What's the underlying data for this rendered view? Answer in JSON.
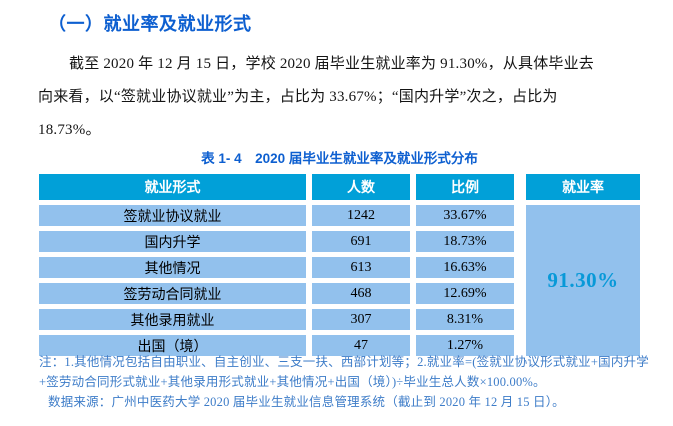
{
  "section_title": "（一）就业率及就业形式",
  "paragraph": {
    "lines": [
      "截至 2020 年 12 月 15 日，学校 2020 届毕业生就业率为 91.30%，从具体毕业去",
      "向来看，以“签就业协议就业”为主，占比为 33.67%；“国内升学”次之，占比为",
      "18.73%。"
    ]
  },
  "table": {
    "caption": "表 1- 4　2020 届毕业生就业率及就业形式分布",
    "columns": [
      "就业形式",
      "人数",
      "比例",
      "就业率"
    ],
    "rows": [
      {
        "form": "签就业协议就业",
        "count": "1242",
        "ratio": "33.67%"
      },
      {
        "form": "国内升学",
        "count": "691",
        "ratio": "18.73%"
      },
      {
        "form": "其他情况",
        "count": "613",
        "ratio": "16.63%"
      },
      {
        "form": "签劳动合同就业",
        "count": "468",
        "ratio": "12.69%"
      },
      {
        "form": "其他录用就业",
        "count": "307",
        "ratio": "8.31%"
      },
      {
        "form": "出国（境）",
        "count": "47",
        "ratio": "1.27%"
      }
    ],
    "employment_rate": "91.30%"
  },
  "notes": {
    "lines": [
      "注：1.其他情况包括自由职业、自主创业、三支一扶、西部计划等；2.就业率=(签就业协议形式就业+国内升学",
      "+签劳动合同形式就业+其他录用形式就业+其他情况+出国（境）)÷毕业生总人数×100.00%。",
      "数据来源：广州中医药大学 2020 届毕业生就业信息管理系统（截止到 2020 年 12 月 15 日）。"
    ]
  },
  "colors": {
    "title_blue": "#0d5fd0",
    "header_bg": "#01a0d8",
    "row_bg": "#92c1ed",
    "rate_text": "#0899d8",
    "note_blue": "#3d7cc8"
  }
}
